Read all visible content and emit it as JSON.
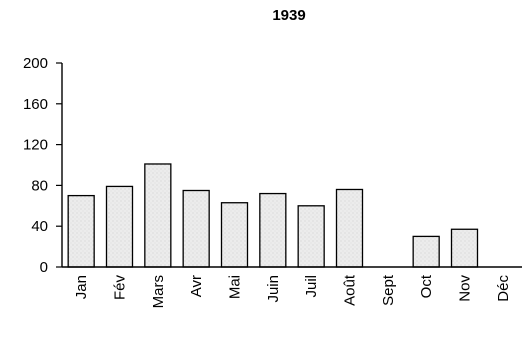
{
  "chart_data": {
    "type": "bar",
    "title": "1939",
    "xlabel": "",
    "ylabel": "",
    "categories": [
      "Jan",
      "Fév",
      "Mars",
      "Avr",
      "Mai",
      "Juin",
      "Juil",
      "Août",
      "Sept",
      "Oct",
      "Nov",
      "Déc"
    ],
    "values": [
      70,
      79,
      101,
      75,
      63,
      72,
      60,
      76,
      0,
      30,
      37,
      0
    ],
    "ylim": [
      0,
      200
    ],
    "yticks": [
      0,
      40,
      80,
      120,
      160,
      200
    ],
    "grid": false,
    "legend": "none",
    "bar_fill": "#e6e6e6",
    "bar_stroke": "#000000",
    "axis_color": "#000000"
  }
}
